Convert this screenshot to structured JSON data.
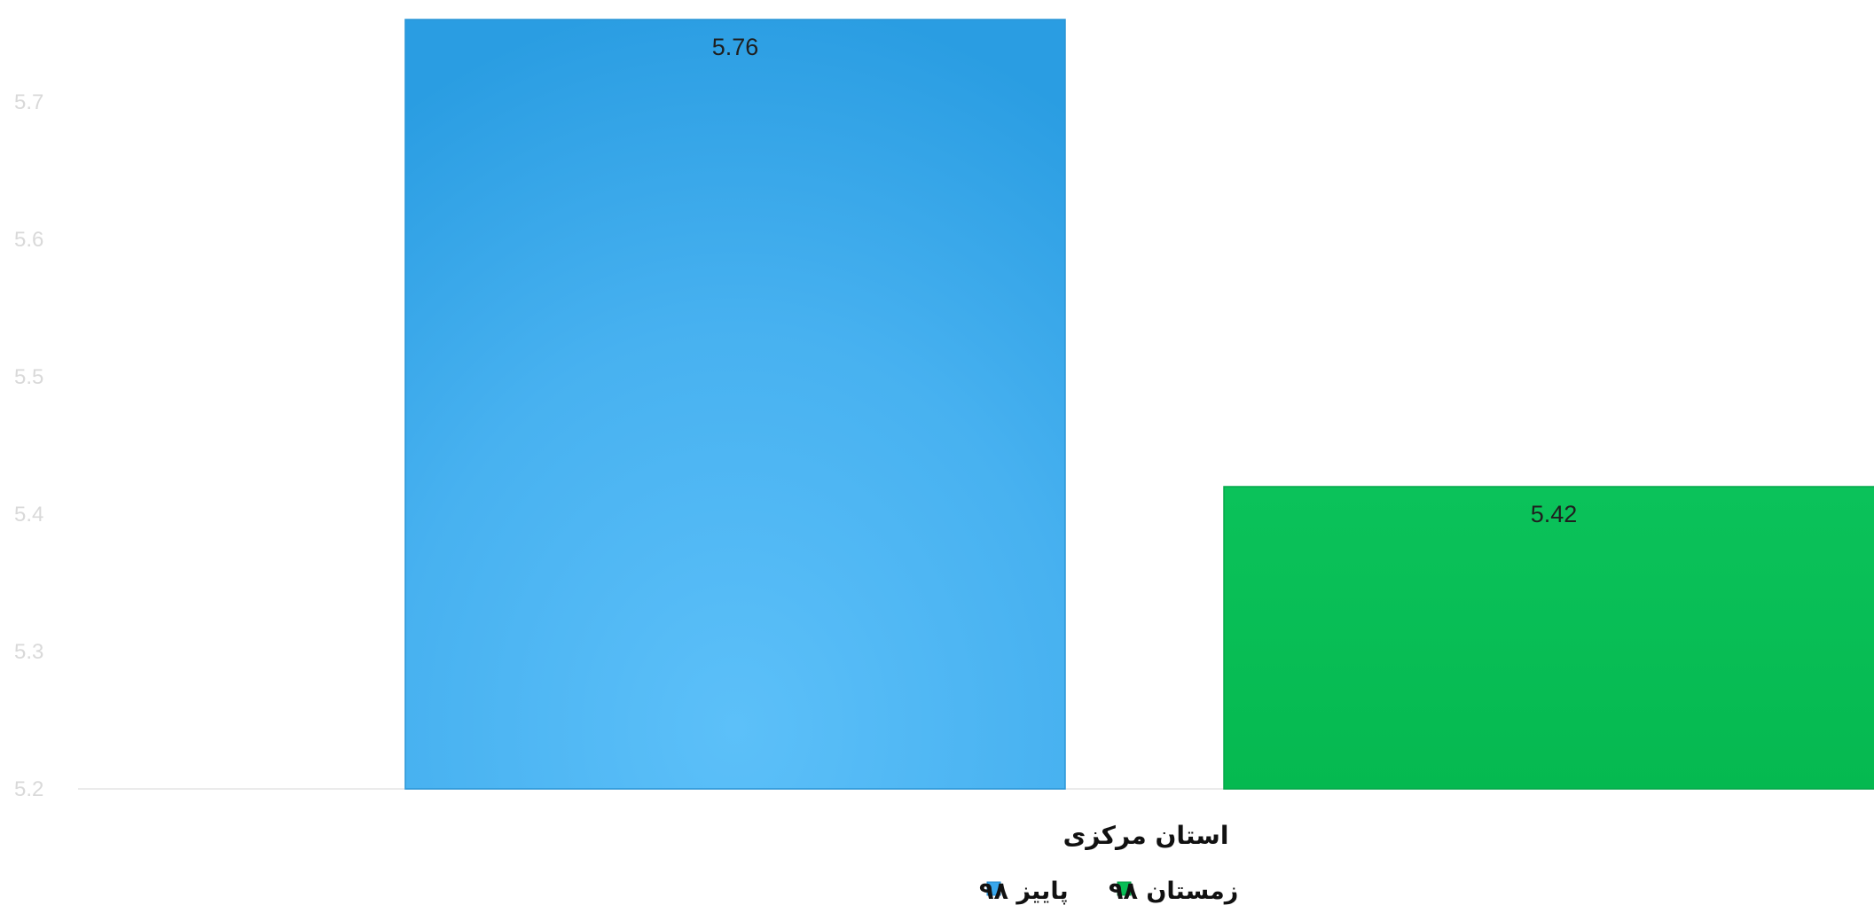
{
  "chart_data": {
    "type": "bar",
    "categories": [
      "استان مرکزی"
    ],
    "series": [
      {
        "name": "پاییز ۹۸",
        "values": [
          5.76
        ],
        "color": "#39a7ec"
      },
      {
        "name": "زمستان ۹۸",
        "values": [
          5.42
        ],
        "color": "#07bd55"
      }
    ],
    "data_labels": [
      "5.76",
      "5.42"
    ],
    "y_ticks": [
      "5.2",
      "5.3",
      "5.4",
      "5.5",
      "5.6",
      "5.7"
    ],
    "ylim": [
      5.2,
      5.76
    ],
    "legend_position": "bottom",
    "grid": false
  }
}
